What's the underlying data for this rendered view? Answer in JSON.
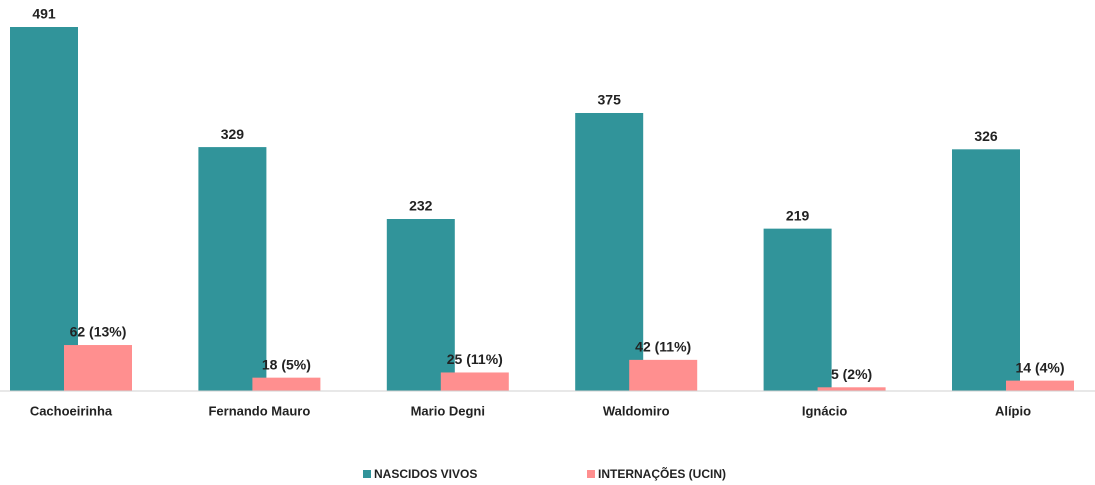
{
  "chart_data": {
    "type": "bar",
    "categories": [
      "Cachoeirinha",
      "Fernando Mauro",
      "Mario Degni",
      "Waldomiro",
      "Ignácio",
      "Alípio"
    ],
    "series": [
      {
        "name": "NASCIDOS VIVOS",
        "color": "#31949a",
        "values": [
          491,
          329,
          232,
          375,
          219,
          326
        ]
      },
      {
        "name": "INTERNAÇÕES (UCIN)",
        "color": "#ff8f8f",
        "values": [
          62,
          18,
          25,
          42,
          5,
          14
        ],
        "value_labels": [
          "62 (13%)",
          "18 (5%)",
          "25 (11%)",
          "42 (11%)",
          "5 (2%)",
          "14 (4%)"
        ]
      }
    ],
    "legend": "bottom"
  }
}
